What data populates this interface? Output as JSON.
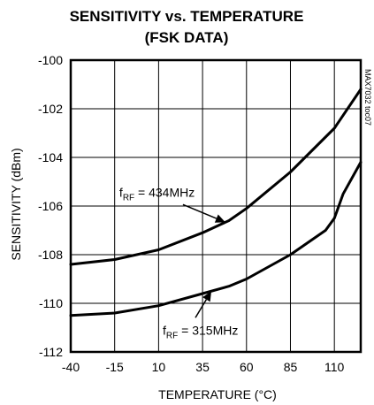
{
  "chart_data": {
    "type": "line",
    "title": "SENSITIVITY vs. TEMPERATURE",
    "subtitle": "(FSK DATA)",
    "xlabel": "TEMPERATURE (°C)",
    "ylabel": "SENSITIVITY (dBm)",
    "xlim": [
      -40,
      125
    ],
    "ylim": [
      -112,
      -100
    ],
    "xticks": [
      -40,
      -15,
      10,
      35,
      60,
      85,
      110
    ],
    "yticks": [
      -100,
      -102,
      -104,
      -106,
      -108,
      -110,
      -112
    ],
    "grid": true,
    "figure_code": "MAX7032 toc07",
    "series": [
      {
        "name": "434MHz",
        "x": [
          -40,
          -15,
          10,
          35,
          50,
          60,
          85,
          110,
          125
        ],
        "y": [
          -108.4,
          -108.2,
          -107.8,
          -107.1,
          -106.6,
          -106.1,
          -104.6,
          -102.8,
          -101.2
        ]
      },
      {
        "name": "315MHz",
        "x": [
          -40,
          -15,
          10,
          35,
          50,
          60,
          85,
          105,
          110,
          115,
          125
        ],
        "y": [
          -110.5,
          -110.4,
          -110.1,
          -109.6,
          -109.3,
          -109.0,
          -108.0,
          -107.0,
          -106.5,
          -105.5,
          -104.2
        ]
      }
    ],
    "annotations": [
      {
        "prefix": "f",
        "sub": "RF",
        "text": " = 434MHz",
        "series": 0,
        "point_x": 48
      },
      {
        "prefix": "f",
        "sub": "RF",
        "text": " = 315MHz",
        "series": 1,
        "point_x": 40
      }
    ]
  }
}
